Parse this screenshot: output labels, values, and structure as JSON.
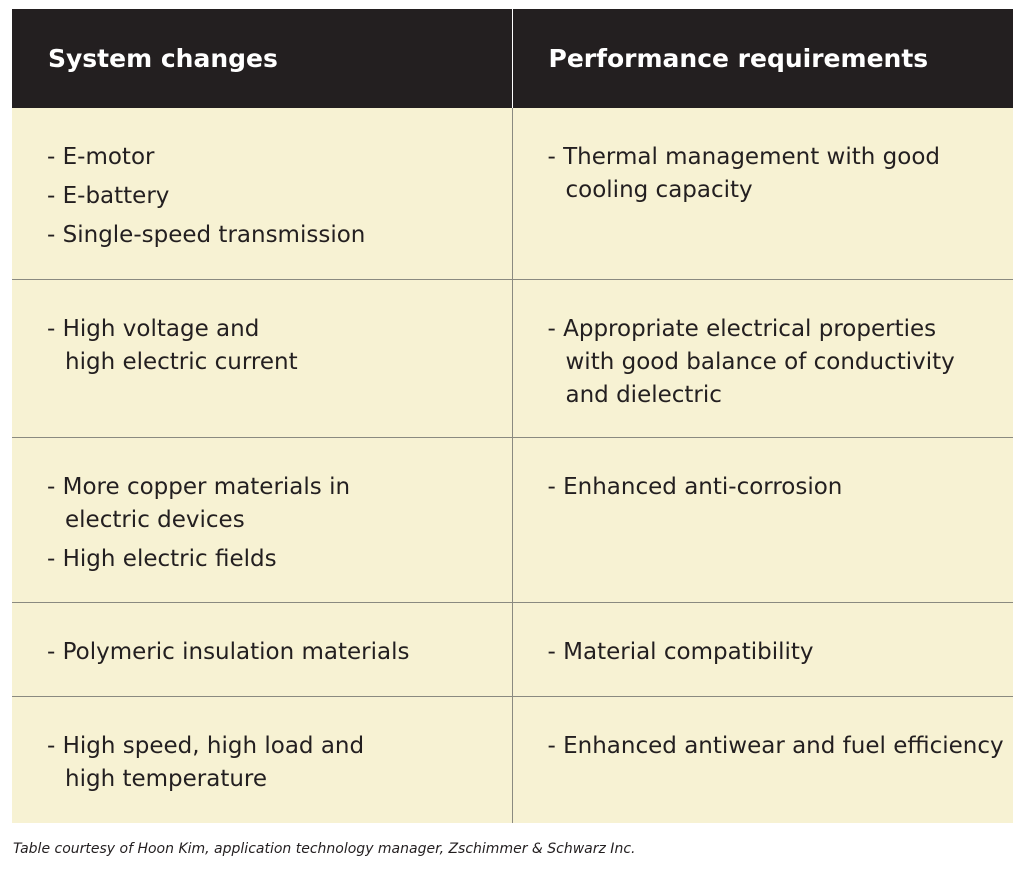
{
  "table": {
    "headers": [
      "System changes",
      "Performance requirements"
    ],
    "rows": [
      {
        "system": [
          "E-motor",
          "E-battery",
          "Single-speed transmission"
        ],
        "performance": [
          "Thermal management with good\ncooling capacity"
        ]
      },
      {
        "system": [
          "High voltage and\nhigh electric current"
        ],
        "performance": [
          "Appropriate electrical properties\nwith good balance of conductivity\nand dielectric"
        ]
      },
      {
        "system": [
          "More copper materials in\nelectric devices",
          "High electric fields"
        ],
        "performance": [
          "Enhanced anti-corrosion"
        ]
      },
      {
        "system": [
          "Polymeric insulation materials"
        ],
        "performance": [
          "Material compatibility"
        ]
      },
      {
        "system": [
          "High speed, high load and\nhigh temperature"
        ],
        "performance": [
          "Enhanced antiwear and fuel efficiency"
        ]
      }
    ]
  },
  "caption": "Table courtesy of Hoon Kim, application technology manager, Zschimmer & Schwarz Inc."
}
